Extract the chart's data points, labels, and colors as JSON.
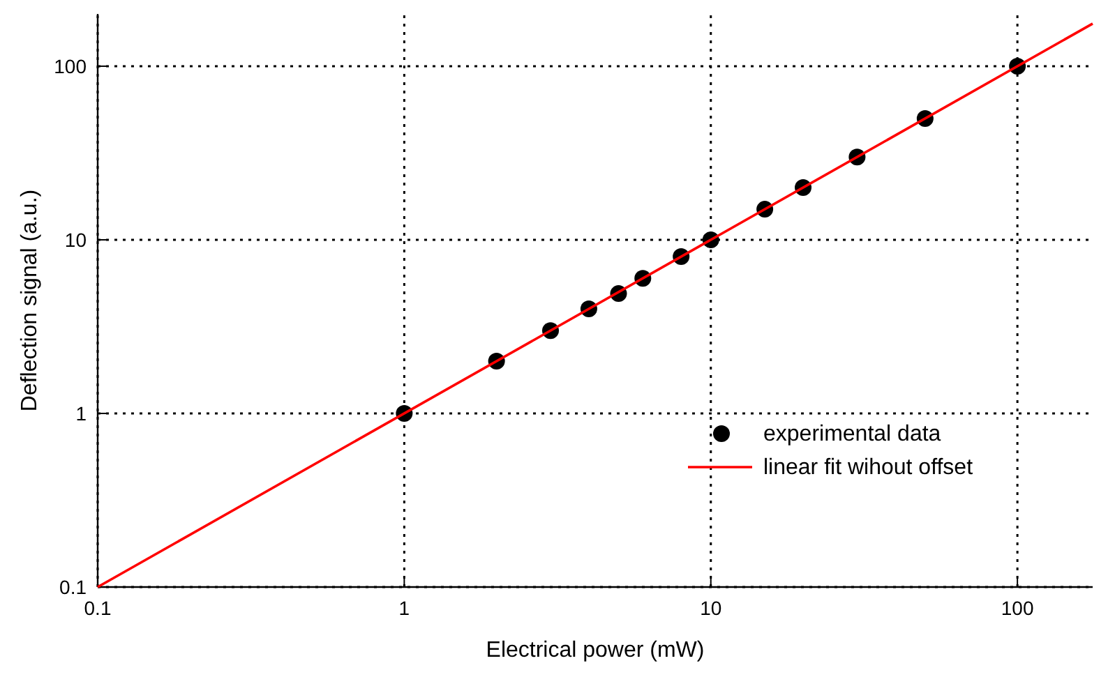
{
  "chart_data": {
    "type": "scatter",
    "xlabel": "Electrical power (mW)",
    "ylabel": "Deflection signal (a.u.)",
    "log": "xy",
    "xlim": [
      0.1,
      176
    ],
    "ylim": [
      0.1,
      200
    ],
    "xticks": [
      0.1,
      1,
      10,
      100
    ],
    "yticks": [
      0.1,
      1,
      10,
      100
    ],
    "grid": true,
    "legend": "bottom right",
    "series": [
      {
        "name": "experimental data",
        "marker": "circle",
        "color": "#000000",
        "x": [
          1,
          2,
          3,
          4,
          5,
          6,
          8,
          10,
          15,
          20,
          30,
          50,
          100
        ],
        "values": [
          1,
          2,
          3,
          4,
          4.9,
          6,
          8,
          10,
          15,
          20,
          30,
          50,
          100
        ]
      },
      {
        "name": "linear fit wihout offset",
        "type": "line",
        "color": "#ff0000",
        "line_style": "solid",
        "x": [
          0.1,
          176
        ],
        "values": [
          0.1,
          176
        ]
      }
    ]
  }
}
